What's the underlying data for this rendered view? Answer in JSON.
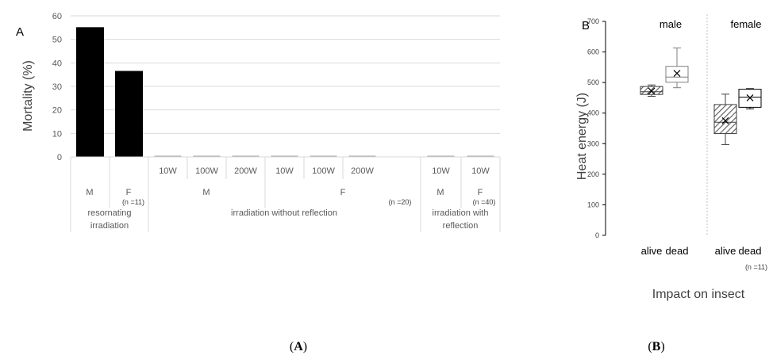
{
  "chart_data": [
    {
      "type": "bar",
      "panel_label": "A",
      "ylabel": "Mortality (%)",
      "ylim": [
        0,
        60
      ],
      "yticks": [
        0,
        10,
        20,
        30,
        40,
        50,
        60
      ],
      "grid": true,
      "bars": [
        {
          "power": "",
          "sex": "M",
          "group": "resornating irradiation",
          "value": 55
        },
        {
          "power": "",
          "sex": "F",
          "group": "resornating irradiation",
          "value": 36.4
        },
        {
          "power": "10W",
          "sex": "M",
          "group": "irradiation without reflection",
          "value": 0
        },
        {
          "power": "100W",
          "sex": "M",
          "group": "irradiation without reflection",
          "value": 0
        },
        {
          "power": "200W",
          "sex": "M",
          "group": "irradiation without reflection",
          "value": 0
        },
        {
          "power": "10W",
          "sex": "F",
          "group": "irradiation without reflection",
          "value": 0
        },
        {
          "power": "100W",
          "sex": "F",
          "group": "irradiation without reflection",
          "value": 0
        },
        {
          "power": "200W",
          "sex": "F",
          "group": "irradiation without reflection",
          "value": 0
        },
        {
          "power": "10W",
          "sex": "M",
          "group": "irradiation with reflection",
          "value": 0
        },
        {
          "power": "10W",
          "sex": "F",
          "group": "irradiation with reflection",
          "value": 0
        }
      ],
      "group_labels": [
        {
          "line1": "resornating",
          "line2": "irradiation"
        },
        {
          "line1": "irradiation without reflection",
          "line2": ""
        },
        {
          "line1": "irradiation with",
          "line2": "reflection"
        }
      ],
      "sex_labels": [
        "M",
        "F",
        "M",
        "F",
        "M",
        "F"
      ],
      "n_labels": [
        "(n =11)",
        "(n =20)",
        "(n =40)"
      ],
      "bar_color": "#000000",
      "caption": "(A)"
    },
    {
      "type": "box",
      "panel_label": "B",
      "ylabel": "Heat energy (J)",
      "xlabel": "Impact on insect",
      "ylim": [
        0,
        700
      ],
      "yticks": [
        0,
        100,
        200,
        300,
        400,
        500,
        600,
        700
      ],
      "groups": [
        "male",
        "female"
      ],
      "boxes": [
        {
          "group": "male",
          "label": "alive",
          "min": 455,
          "q1": 461,
          "median": 470,
          "q3": 487,
          "max": 492,
          "mean": 472,
          "hatched": true
        },
        {
          "group": "male",
          "label": "dead",
          "min": 483,
          "q1": 501,
          "median": 518,
          "q3": 553,
          "max": 613,
          "mean": 530,
          "hatched": false
        },
        {
          "group": "female",
          "label": "alive",
          "min": 297,
          "q1": 333,
          "median": 370,
          "q3": 428,
          "max": 462,
          "mean": 375,
          "hatched": true
        },
        {
          "group": "female",
          "label": "dead",
          "min": 414,
          "q1": 419,
          "median": 452,
          "q3": 478,
          "max": 480,
          "mean": 450,
          "hatched": false
        }
      ],
      "n_label": "(n =11)",
      "caption": "(B)"
    }
  ]
}
